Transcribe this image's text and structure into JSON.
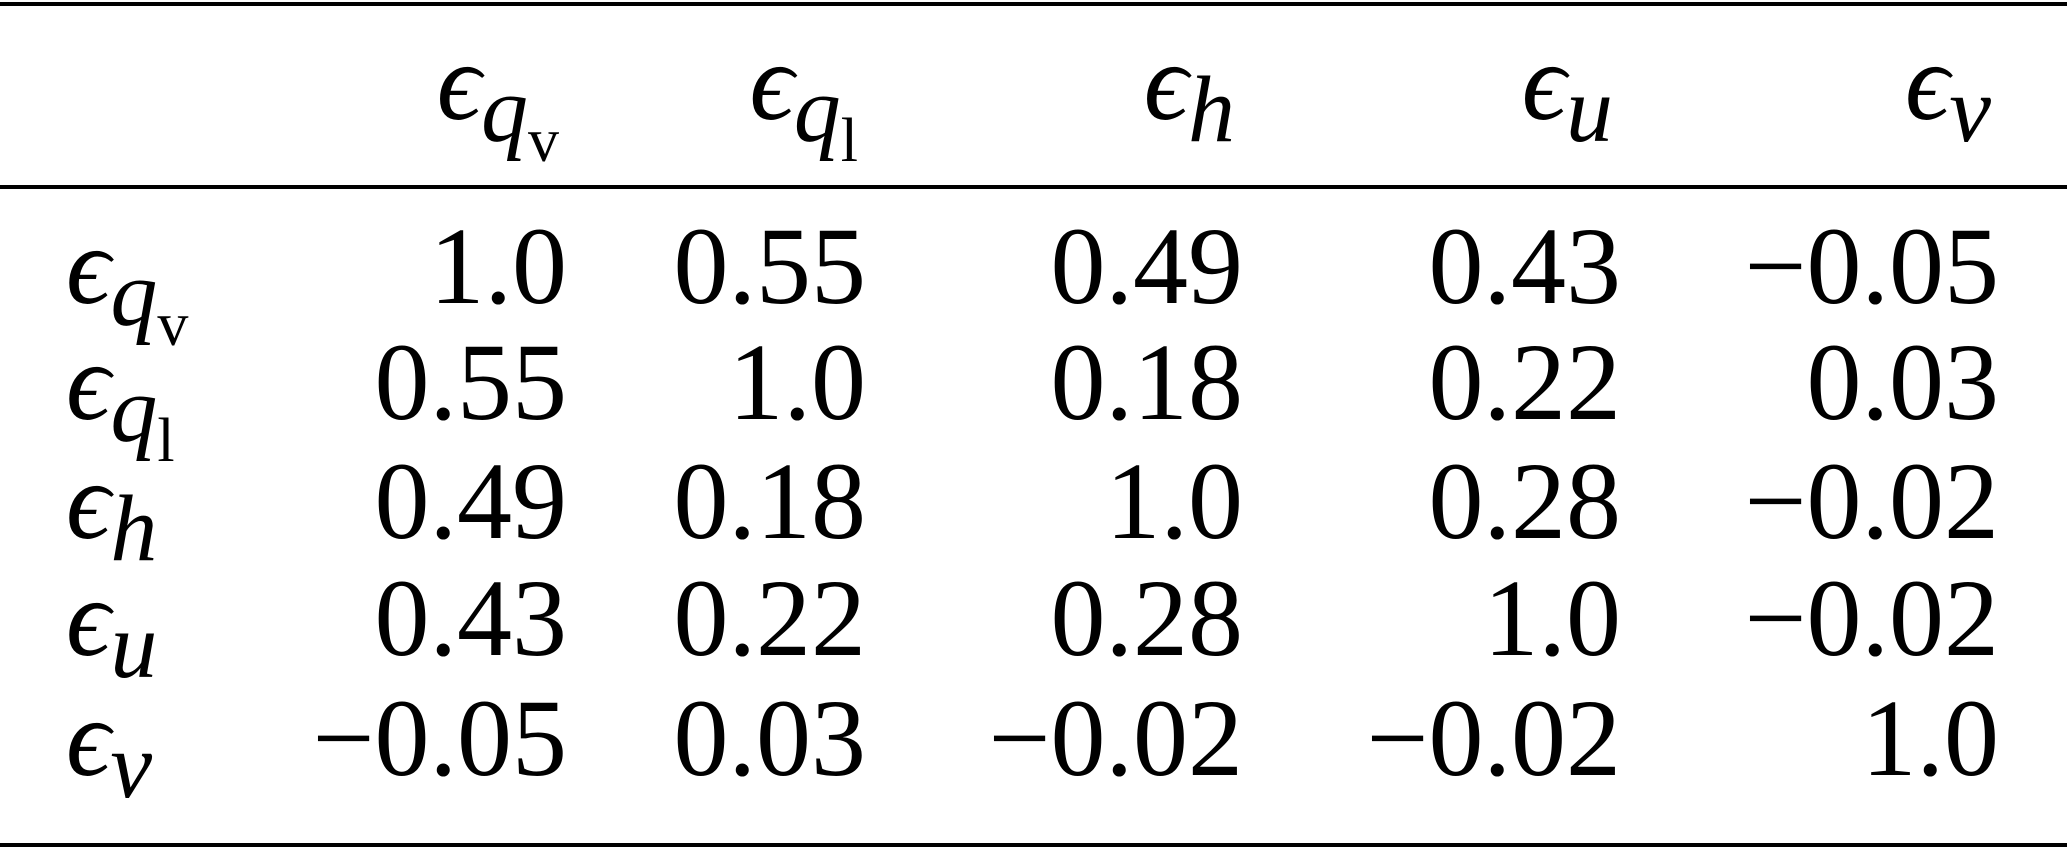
{
  "table": {
    "columns": [
      {
        "symbol": "ϵ",
        "sub": "q",
        "sub2": "v"
      },
      {
        "symbol": "ϵ",
        "sub": "q",
        "sub2": "l"
      },
      {
        "symbol": "ϵ",
        "sub": "h"
      },
      {
        "symbol": "ϵ",
        "sub": "u"
      },
      {
        "symbol": "ϵ",
        "sub": "v"
      }
    ],
    "rows": [
      {
        "label": {
          "symbol": "ϵ",
          "sub": "q",
          "sub2": "v"
        },
        "cells": [
          "1.0",
          "0.55",
          "0.49",
          "0.43",
          "−0.05"
        ]
      },
      {
        "label": {
          "symbol": "ϵ",
          "sub": "q",
          "sub2": "l"
        },
        "cells": [
          "0.55",
          "1.0",
          "0.18",
          "0.22",
          "0.03"
        ]
      },
      {
        "label": {
          "symbol": "ϵ",
          "sub": "h"
        },
        "cells": [
          "0.49",
          "0.18",
          "1.0",
          "0.28",
          "−0.02"
        ]
      },
      {
        "label": {
          "symbol": "ϵ",
          "sub": "u"
        },
        "cells": [
          "0.43",
          "0.22",
          "0.28",
          "1.0",
          "−0.02"
        ]
      },
      {
        "label": {
          "symbol": "ϵ",
          "sub": "v"
        },
        "cells": [
          "−0.05",
          "0.03",
          "−0.02",
          "−0.02",
          "1.0"
        ]
      }
    ]
  }
}
